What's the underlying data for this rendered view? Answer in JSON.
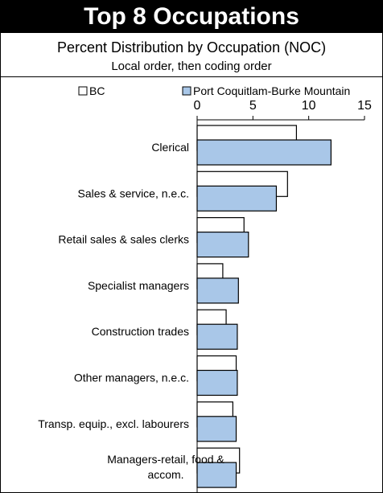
{
  "title": "Top 8 Occupations",
  "subtitle": "Percent Distribution by Occupation (NOC)",
  "subtitle2": "Local order, then coding order",
  "colors": {
    "bc": "#ffffff",
    "local": "#a9c7e8",
    "stroke": "#000000"
  },
  "chart_data": {
    "type": "bar",
    "orientation": "horizontal",
    "title": "Percent Distribution by Occupation (NOC)",
    "categories": [
      "Clerical",
      "Sales & service, n.e.c.",
      "Retail sales & sales clerks",
      "Specialist managers",
      "Construction trades",
      "Other managers, n.e.c.",
      "Transp. equip., excl. labourers",
      "Managers-retail, food & accom."
    ],
    "series": [
      {
        "name": "BC",
        "values": [
          8.9,
          8.1,
          4.2,
          2.3,
          2.6,
          3.5,
          3.2,
          3.8
        ]
      },
      {
        "name": "Port Coquitlam-Burke Mountain",
        "values": [
          12.0,
          7.1,
          4.6,
          3.7,
          3.6,
          3.6,
          3.5,
          3.5
        ]
      }
    ],
    "xlim": [
      0,
      15
    ],
    "xticks": [
      "0",
      "5",
      "10",
      "15"
    ],
    "legend": "top",
    "grid": false
  }
}
